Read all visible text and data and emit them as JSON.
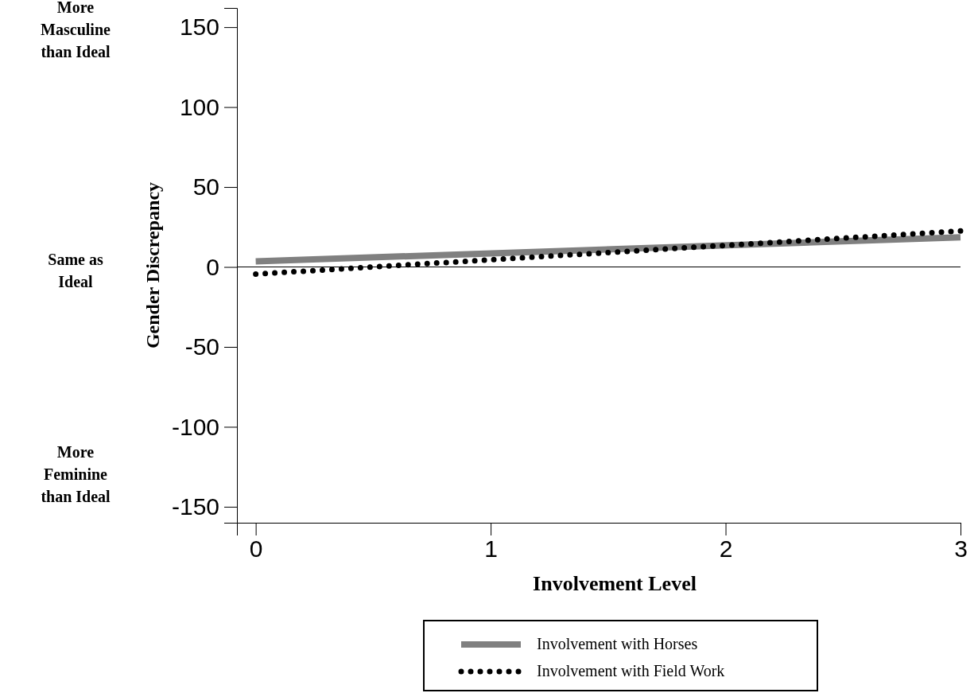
{
  "chart_data": {
    "type": "line",
    "xlabel": "Involvement Level",
    "ylabel": "Gender Discrepancy",
    "x": [
      0,
      3
    ],
    "series": [
      {
        "name": "Involvement with Horses",
        "color": "#808080",
        "values": [
          3.5,
          18.5
        ],
        "line_style": "solid"
      },
      {
        "name": "Involvement with Field Work",
        "color": "#000000",
        "values": [
          -4.5,
          22.5
        ],
        "line_style": "dotted"
      }
    ],
    "xlim": [
      -0.08,
      3
    ],
    "xticks": [
      0,
      1,
      2,
      3
    ],
    "ylim": [
      -160,
      162
    ],
    "yticks": [
      -150,
      -100,
      -50,
      0,
      50,
      100,
      150
    ],
    "ref_lines": [
      {
        "axis": "y",
        "value": 0,
        "color": "#000000"
      }
    ],
    "annotations": [
      "More Masculine than Ideal",
      "Same as Ideal",
      "More Feminine than Ideal"
    ],
    "legend": "bottom",
    "grid": false
  }
}
